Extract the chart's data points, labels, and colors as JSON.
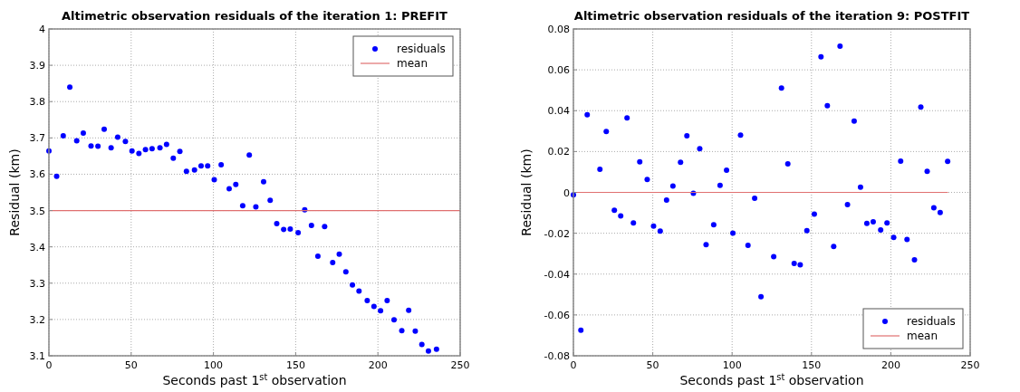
{
  "chart_data": [
    {
      "type": "scatter",
      "title": "Altimetric observation residuals of the iteration 1: PREFIT",
      "xlabel": "Seconds past 1$^{st}$ observation",
      "ylabel": "Residual (km)",
      "xlim": [
        0,
        250
      ],
      "xticks": [
        0,
        50,
        100,
        150,
        200,
        250
      ],
      "ylim": [
        3.1,
        4
      ],
      "yticks": [
        3.1,
        3.2,
        3.3,
        3.4,
        3.5,
        3.6,
        3.7,
        3.8,
        3.9,
        4
      ],
      "grid": true,
      "legend": "top right",
      "series": [
        {
          "name": "residuals",
          "type": "scatter",
          "marker": "circle",
          "color": "#0000ff",
          "x": [
            0,
            4.7,
            8.7,
            12.7,
            16.9,
            20.9,
            25.6,
            29.8,
            33.6,
            37.8,
            41.8,
            46.5,
            50.5,
            54.7,
            58.7,
            62.7,
            67.5,
            71.5,
            75.6,
            79.6,
            83.6,
            88.5,
            92.5,
            96.5,
            100.5,
            104.7,
            109.6,
            113.6,
            117.8,
            121.8,
            125.8,
            130.5,
            134.5,
            138.5,
            142.7,
            146.7,
            151.5,
            155.5,
            159.6,
            163.5,
            167.6,
            172.5,
            176.5,
            180.5,
            184.5,
            188.5,
            193.5,
            197.6,
            201.6,
            205.6,
            209.8,
            214.5,
            218.7,
            222.7,
            226.7,
            230.7,
            235.6
          ],
          "values": [
            3.664,
            3.594,
            3.706,
            3.84,
            3.692,
            3.713,
            3.678,
            3.677,
            3.724,
            3.673,
            3.702,
            3.69,
            3.664,
            3.657,
            3.668,
            3.67,
            3.673,
            3.682,
            3.644,
            3.663,
            3.608,
            3.612,
            3.623,
            3.623,
            3.585,
            3.626,
            3.56,
            3.572,
            3.513,
            3.653,
            3.51,
            3.579,
            3.528,
            3.464,
            3.448,
            3.449,
            3.439,
            3.502,
            3.459,
            3.374,
            3.456,
            3.357,
            3.38,
            3.331,
            3.295,
            3.278,
            3.252,
            3.236,
            3.224,
            3.252,
            3.199,
            3.169,
            3.225,
            3.168,
            3.131,
            3.113,
            3.118
          ]
        },
        {
          "name": "mean",
          "type": "line",
          "color": "#e07070",
          "x": [
            0,
            250
          ],
          "values": [
            3.5,
            3.5
          ]
        }
      ]
    },
    {
      "type": "scatter",
      "title": "Altimetric observation residuals of the iteration 9: POSTFIT",
      "xlabel": "Seconds past 1$^{st}$ observation",
      "ylabel": "Residual (km)",
      "xlim": [
        0,
        250
      ],
      "xticks": [
        0,
        50,
        100,
        150,
        200,
        250
      ],
      "ylim": [
        -0.08,
        0.08
      ],
      "yticks": [
        -0.08,
        -0.06,
        -0.04,
        -0.02,
        0,
        0.02,
        0.04,
        0.06,
        0.08
      ],
      "grid": true,
      "legend": "bottom right",
      "series": [
        {
          "name": "residuals",
          "type": "scatter",
          "marker": "circle",
          "color": "#0000ff",
          "x": [
            0,
            4.7,
            8.7,
            16.7,
            20.7,
            25.8,
            29.8,
            33.8,
            37.8,
            41.8,
            46.5,
            50.5,
            54.7,
            58.7,
            62.7,
            67.5,
            71.5,
            75.6,
            79.6,
            83.6,
            88.4,
            92.4,
            96.5,
            100.5,
            105.3,
            110,
            114.2,
            118.2,
            126.2,
            131.1,
            135.1,
            139.1,
            142.9,
            147.1,
            151.8,
            156,
            160,
            164,
            168,
            172.7,
            176.9,
            180.9,
            184.9,
            188.9,
            193.6,
            197.6,
            201.8,
            206.2,
            210.2,
            214.9,
            218.9,
            222.9,
            227.1,
            231.1,
            235.8
          ],
          "values": [
            -0.0012,
            -0.0675,
            0.038,
            0.0113,
            0.0298,
            -0.0087,
            -0.0115,
            0.0365,
            -0.015,
            0.015,
            0.0063,
            -0.0165,
            -0.0189,
            -0.0038,
            0.0031,
            0.0147,
            0.0277,
            -0.0004,
            0.0214,
            -0.0256,
            -0.0158,
            0.0034,
            0.0109,
            -0.0199,
            0.028,
            -0.0259,
            -0.0029,
            -0.0511,
            -0.0315,
            0.0511,
            0.014,
            -0.0348,
            -0.0355,
            -0.0187,
            -0.0106,
            0.0664,
            0.0424,
            -0.0265,
            0.0716,
            -0.006,
            0.0349,
            0.0025,
            -0.0152,
            -0.0144,
            -0.0184,
            -0.015,
            -0.022,
            0.0153,
            -0.023,
            -0.033,
            0.0418,
            0.0103,
            -0.0075,
            -0.0099,
            0.0152
          ]
        },
        {
          "name": "mean",
          "type": "line",
          "color": "#e07070",
          "x": [
            0,
            236
          ],
          "values": [
            0,
            0
          ]
        }
      ]
    }
  ]
}
